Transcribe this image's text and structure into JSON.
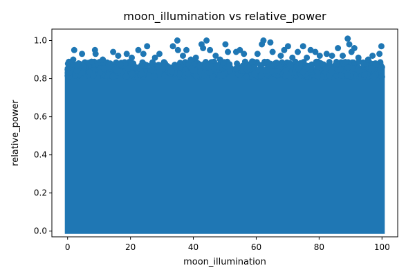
{
  "chart_data": {
    "type": "scatter",
    "title": "moon_illumination vs relative_power",
    "xlabel": "moon_illumination",
    "ylabel": "relative_power",
    "xlim": [
      -5,
      105
    ],
    "ylim": [
      -0.03,
      1.06
    ],
    "xticks": [
      0,
      20,
      40,
      60,
      80,
      100
    ],
    "yticks": [
      0.0,
      0.2,
      0.4,
      0.6,
      0.8,
      1.0
    ],
    "xtick_labels": [
      "0",
      "20",
      "40",
      "60",
      "80",
      "100"
    ],
    "ytick_labels": [
      "0.0",
      "0.2",
      "0.4",
      "0.6",
      "0.8",
      "1.0"
    ],
    "grid": false,
    "marker_color": "#1f77b4",
    "series": [
      {
        "points": [
          [
            0.5,
            0.83
          ],
          [
            1.8,
            0.9
          ],
          [
            2.1,
            0.95
          ],
          [
            3.5,
            0.88
          ],
          [
            4.6,
            0.93
          ],
          [
            5.2,
            0.86
          ],
          [
            8.7,
            0.95
          ],
          [
            8.9,
            0.93
          ],
          [
            11.2,
            0.9
          ],
          [
            14.5,
            0.94
          ],
          [
            16.1,
            0.92
          ],
          [
            18.8,
            0.93
          ],
          [
            20.4,
            0.91
          ],
          [
            22.5,
            0.95
          ],
          [
            24.1,
            0.93
          ],
          [
            25.3,
            0.97
          ],
          [
            27.8,
            0.91
          ],
          [
            29.2,
            0.93
          ],
          [
            31.0,
            0.88
          ],
          [
            33.5,
            0.97
          ],
          [
            34.9,
            1.0
          ],
          [
            35.1,
            0.95
          ],
          [
            36.7,
            0.92
          ],
          [
            37.8,
            0.95
          ],
          [
            39.2,
            0.9
          ],
          [
            40.8,
            0.91
          ],
          [
            42.6,
            0.98
          ],
          [
            43.1,
            0.96
          ],
          [
            44.2,
            1.0
          ],
          [
            45.3,
            0.95
          ],
          [
            47.1,
            0.92
          ],
          [
            48.5,
            0.9
          ],
          [
            50.2,
            0.98
          ],
          [
            51.0,
            0.94
          ],
          [
            53.6,
            0.94
          ],
          [
            54.8,
            0.95
          ],
          [
            56.1,
            0.93
          ],
          [
            58.7,
            0.89
          ],
          [
            60.4,
            0.93
          ],
          [
            61.8,
            0.98
          ],
          [
            62.3,
            1.0
          ],
          [
            64.5,
            0.99
          ],
          [
            65.2,
            0.94
          ],
          [
            67.8,
            0.92
          ],
          [
            68.9,
            0.95
          ],
          [
            70.1,
            0.97
          ],
          [
            71.5,
            0.91
          ],
          [
            73.2,
            0.94
          ],
          [
            74.9,
            0.97
          ],
          [
            76.1,
            0.91
          ],
          [
            77.3,
            0.95
          ],
          [
            78.8,
            0.94
          ],
          [
            80.2,
            0.92
          ],
          [
            82.4,
            0.93
          ],
          [
            84.1,
            0.92
          ],
          [
            86.0,
            0.96
          ],
          [
            87.5,
            0.92
          ],
          [
            89.1,
            1.01
          ],
          [
            89.6,
            0.98
          ],
          [
            90.3,
            0.94
          ],
          [
            91.2,
            0.96
          ],
          [
            92.5,
            0.91
          ],
          [
            94.1,
            0.88
          ],
          [
            95.6,
            0.9
          ],
          [
            97.0,
            0.92
          ],
          [
            99.2,
            0.93
          ],
          [
            99.8,
            0.97
          ],
          [
            100.0,
            0.86
          ]
        ]
      }
    ]
  }
}
